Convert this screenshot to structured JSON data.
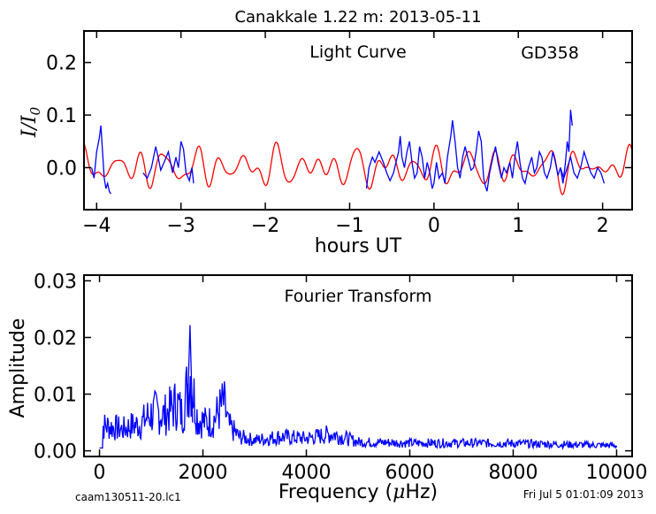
{
  "figure_title": "Canakkale 1.22 m:  2013-05-11",
  "footer_left": "caam130511-20.lc1",
  "footer_right": "Fri Jul  5 01:01:09 2013",
  "chart_data": [
    {
      "type": "line",
      "annotation": "Light Curve",
      "object_label": "GD358",
      "xlabel": "hours UT",
      "ylabel": "I/I0",
      "xlim": [
        -4.15,
        2.35
      ],
      "ylim": [
        -0.08,
        0.26
      ],
      "xticks": [
        -4,
        -3,
        -2,
        -1,
        0,
        1,
        2
      ],
      "xtick_labels": [
        "−4",
        "−3",
        "−2",
        "−1",
        "0",
        "1",
        "2"
      ],
      "yticks": [
        0.0,
        0.1,
        0.2
      ],
      "ytick_labels": [
        "0.0",
        "0.1",
        "0.2"
      ],
      "grid": false,
      "series": [
        {
          "color": "#0000ff",
          "segments": [
            [
              [
                -4.06,
                0.0
              ],
              [
                -4.03,
                -0.02
              ],
              [
                -4.0,
                0.03
              ],
              [
                -3.97,
                0.055
              ],
              [
                -3.95,
                0.08
              ],
              [
                -3.93,
                0.03
              ],
              [
                -3.91,
                -0.02
              ],
              [
                -3.89,
                -0.04
              ],
              [
                -3.87,
                -0.03
              ],
              [
                -3.85,
                -0.045
              ],
              [
                -3.83,
                -0.05
              ]
            ],
            [
              [
                -3.45,
                -0.01
              ],
              [
                -3.4,
                -0.02
              ],
              [
                -3.35,
                0.0
              ],
              [
                -3.3,
                0.04
              ],
              [
                -3.27,
                0.02
              ],
              [
                -3.24,
                -0.005
              ],
              [
                -3.2,
                0.01
              ],
              [
                -3.15,
                0.03
              ],
              [
                -3.1,
                -0.01
              ],
              [
                -3.06,
                0.02
              ],
              [
                -3.03,
                0.0
              ],
              [
                -3.0,
                0.05
              ],
              [
                -2.97,
                0.035
              ],
              [
                -2.94,
                -0.01
              ],
              [
                -2.9,
                -0.025
              ],
              [
                -2.87,
                0.0
              ],
              [
                -2.85,
                -0.03
              ]
            ],
            [
              [
                -0.8,
                -0.04
              ],
              [
                -0.77,
                0.0
              ],
              [
                -0.73,
                0.02
              ],
              [
                -0.7,
                0.01
              ],
              [
                -0.65,
                0.03
              ],
              [
                -0.6,
                0.01
              ],
              [
                -0.56,
                -0.01
              ],
              [
                -0.52,
                -0.025
              ],
              [
                -0.48,
                -0.01
              ],
              [
                -0.45,
                0.01
              ],
              [
                -0.42,
                0.03
              ],
              [
                -0.4,
                0.06
              ],
              [
                -0.38,
                0.02
              ],
              [
                -0.35,
                0.0
              ],
              [
                -0.32,
                0.03
              ],
              [
                -0.29,
                0.05
              ],
              [
                -0.26,
                0.01
              ],
              [
                -0.23,
                -0.02
              ],
              [
                -0.2,
                -0.01
              ],
              [
                -0.17,
                0.04
              ],
              [
                -0.14,
                0.02
              ],
              [
                -0.11,
                -0.02
              ],
              [
                -0.08,
                0.01
              ],
              [
                -0.05,
                -0.01
              ],
              [
                -0.02,
                -0.04
              ],
              [
                0.0,
                -0.03
              ],
              [
                0.03,
                0.01
              ],
              [
                0.06,
                -0.02
              ],
              [
                0.1,
                -0.01
              ],
              [
                0.13,
                -0.03
              ],
              [
                0.16,
                0.02
              ],
              [
                0.2,
                0.06
              ],
              [
                0.22,
                0.09
              ],
              [
                0.25,
                0.05
              ],
              [
                0.28,
                0.0
              ],
              [
                0.31,
                -0.02
              ],
              [
                0.34,
                0.02
              ],
              [
                0.37,
                0.04
              ],
              [
                0.4,
                0.02
              ],
              [
                0.44,
                -0.005
              ],
              [
                0.47,
                0.0
              ],
              [
                0.5,
                0.03
              ],
              [
                0.53,
                0.07
              ],
              [
                0.56,
                0.05
              ],
              [
                0.59,
                -0.02
              ],
              [
                0.61,
                -0.035
              ],
              [
                0.63,
                -0.045
              ],
              [
                0.66,
                -0.01
              ],
              [
                0.7,
                0.02
              ],
              [
                0.73,
                0.04
              ],
              [
                0.76,
                0.01
              ],
              [
                0.8,
                -0.02
              ],
              [
                0.83,
                0.0
              ],
              [
                0.86,
                -0.01
              ],
              [
                0.9,
                0.01
              ],
              [
                0.93,
                -0.02
              ],
              [
                0.96,
                0.02
              ],
              [
                0.99,
                0.05
              ],
              [
                1.02,
                0.01
              ],
              [
                1.05,
                -0.02
              ],
              [
                1.08,
                -0.03
              ],
              [
                1.12,
                0.0
              ],
              [
                1.16,
                0.02
              ],
              [
                1.19,
                -0.01
              ],
              [
                1.22,
                0.0
              ],
              [
                1.25,
                0.03
              ],
              [
                1.28,
                0.02
              ],
              [
                1.31,
                -0.01
              ],
              [
                1.34,
                -0.02
              ],
              [
                1.38,
                0.0
              ],
              [
                1.41,
                0.03
              ],
              [
                1.44,
                0.01
              ],
              [
                1.47,
                -0.015
              ],
              [
                1.5,
                0.0
              ],
              [
                1.53,
                -0.03
              ],
              [
                1.56,
                0.01
              ],
              [
                1.58,
                0.05
              ],
              [
                1.6,
                0.03
              ],
              [
                1.62,
                0.11
              ],
              [
                1.64,
                0.08
              ]
            ],
            [
              [
                1.5,
                0.0
              ],
              [
                1.54,
                -0.02
              ],
              [
                1.58,
                0.0
              ],
              [
                1.62,
                0.02
              ],
              [
                1.66,
                -0.01
              ],
              [
                1.7,
                -0.02
              ],
              [
                1.74,
                0.0
              ],
              [
                1.78,
                0.03
              ],
              [
                1.82,
                0.01
              ],
              [
                1.86,
                -0.01
              ],
              [
                1.9,
                -0.02
              ],
              [
                1.94,
                0.0
              ],
              [
                1.98,
                -0.01
              ],
              [
                2.02,
                -0.03
              ]
            ]
          ]
        },
        {
          "color": "#ff0000",
          "function": "model",
          "xrange": [
            -4.15,
            2.35
          ]
        }
      ]
    },
    {
      "type": "line",
      "annotation": "Fourier Transform",
      "xlabel": "Frequency (μHz)",
      "ylabel": "Amplitude",
      "xlim": [
        -300,
        10300
      ],
      "ylim": [
        -0.001,
        0.031
      ],
      "xticks": [
        0,
        2000,
        4000,
        6000,
        8000,
        10000
      ],
      "xtick_labels": [
        "0",
        "2000",
        "4000",
        "6000",
        "8000",
        "10000"
      ],
      "yticks": [
        0.0,
        0.01,
        0.02,
        0.03
      ],
      "ytick_labels": [
        "0.00",
        "0.01",
        "0.02",
        "0.03"
      ],
      "grid": false,
      "series": [
        {
          "color": "#0000ff",
          "x_range": [
            0,
            10000
          ],
          "peaks": [
            [
              150,
              0.007
            ],
            [
              300,
              0.0065
            ],
            [
              450,
              0.006
            ],
            [
              600,
              0.007
            ],
            [
              800,
              0.0075
            ],
            [
              950,
              0.01
            ],
            [
              1100,
              0.011
            ],
            [
              1250,
              0.01
            ],
            [
              1400,
              0.012
            ],
            [
              1500,
              0.0135
            ],
            [
              1600,
              0.01
            ],
            [
              1750,
              0.022
            ],
            [
              1900,
              0.009
            ],
            [
              2050,
              0.008
            ],
            [
              2200,
              0.0085
            ],
            [
              2300,
              0.011
            ],
            [
              2400,
              0.0135
            ],
            [
              2500,
              0.007
            ],
            [
              2700,
              0.004
            ],
            [
              3000,
              0.003
            ],
            [
              3500,
              0.004
            ],
            [
              4000,
              0.0035
            ],
            [
              4500,
              0.0048
            ],
            [
              5000,
              0.0025
            ],
            [
              6000,
              0.0022
            ],
            [
              7000,
              0.0022
            ],
            [
              8000,
              0.0021
            ],
            [
              9000,
              0.0018
            ],
            [
              10000,
              0.0015
            ]
          ]
        }
      ]
    }
  ]
}
